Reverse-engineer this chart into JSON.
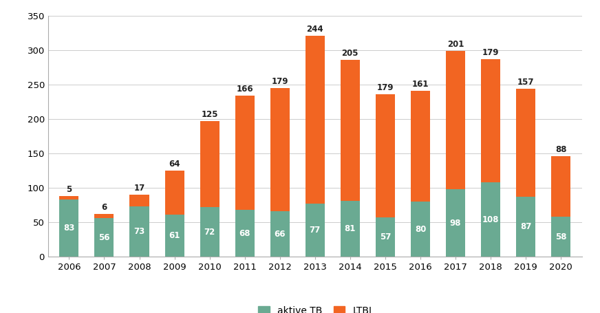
{
  "years": [
    2006,
    2007,
    2008,
    2009,
    2010,
    2011,
    2012,
    2013,
    2014,
    2015,
    2016,
    2017,
    2018,
    2019,
    2020
  ],
  "aktive_tb": [
    83,
    56,
    73,
    61,
    72,
    68,
    66,
    77,
    81,
    57,
    80,
    98,
    108,
    87,
    58
  ],
  "ltbi": [
    5,
    6,
    17,
    64,
    125,
    166,
    179,
    244,
    205,
    179,
    161,
    201,
    179,
    157,
    88
  ],
  "color_aktive": "#6aaa92",
  "color_ltbi": "#f26522",
  "background_color": "#ffffff",
  "grid_color": "#cccccc",
  "ylabel_max": 350,
  "yticks": [
    0,
    50,
    100,
    150,
    200,
    250,
    300,
    350
  ],
  "legend_labels": [
    "aktive TB",
    "LTBI"
  ],
  "bar_width": 0.55
}
